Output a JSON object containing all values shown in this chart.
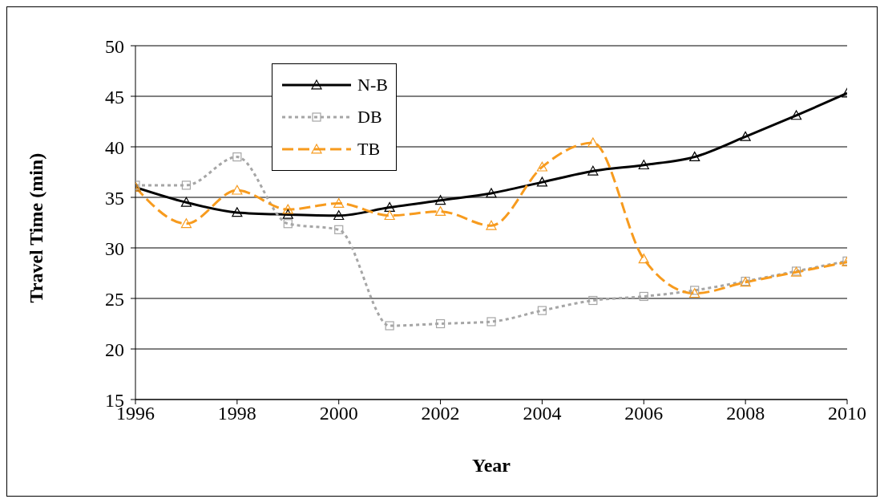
{
  "chart_data": {
    "type": "line",
    "xlabel": "Year",
    "ylabel": "Travel Time (min)",
    "x": [
      1996,
      1997,
      1998,
      1999,
      2000,
      2001,
      2002,
      2003,
      2004,
      2005,
      2006,
      2007,
      2008,
      2009,
      2010
    ],
    "series": [
      {
        "name": "N-B",
        "color": "#000000",
        "marker": "triangle",
        "line_style": "solid",
        "values": [
          36.0,
          34.5,
          33.5,
          33.3,
          33.2,
          34.0,
          34.7,
          35.4,
          36.5,
          37.6,
          38.2,
          39.0,
          41.0,
          43.1,
          45.3
        ]
      },
      {
        "name": "DB",
        "color": "#a6a6a6",
        "marker": "square",
        "line_style": "dotted",
        "values": [
          36.2,
          36.2,
          39.0,
          32.4,
          31.8,
          22.3,
          22.5,
          22.7,
          23.8,
          24.8,
          25.2,
          25.8,
          26.7,
          27.7,
          28.7
        ]
      },
      {
        "name": "TB",
        "color": "#f79b1e",
        "marker": "triangle",
        "line_style": "dashed",
        "values": [
          36.0,
          32.4,
          35.7,
          33.8,
          34.4,
          33.2,
          33.6,
          32.2,
          38.0,
          40.4,
          28.9,
          25.5,
          26.6,
          27.6,
          28.6
        ]
      }
    ],
    "xlim": [
      1996,
      2010
    ],
    "xticks": [
      1996,
      1998,
      2000,
      2002,
      2004,
      2006,
      2008,
      2010
    ],
    "ylim": [
      15,
      50
    ],
    "yticks": [
      15,
      20,
      25,
      30,
      35,
      40,
      45,
      50
    ],
    "grid": "y",
    "legend": "top left"
  }
}
